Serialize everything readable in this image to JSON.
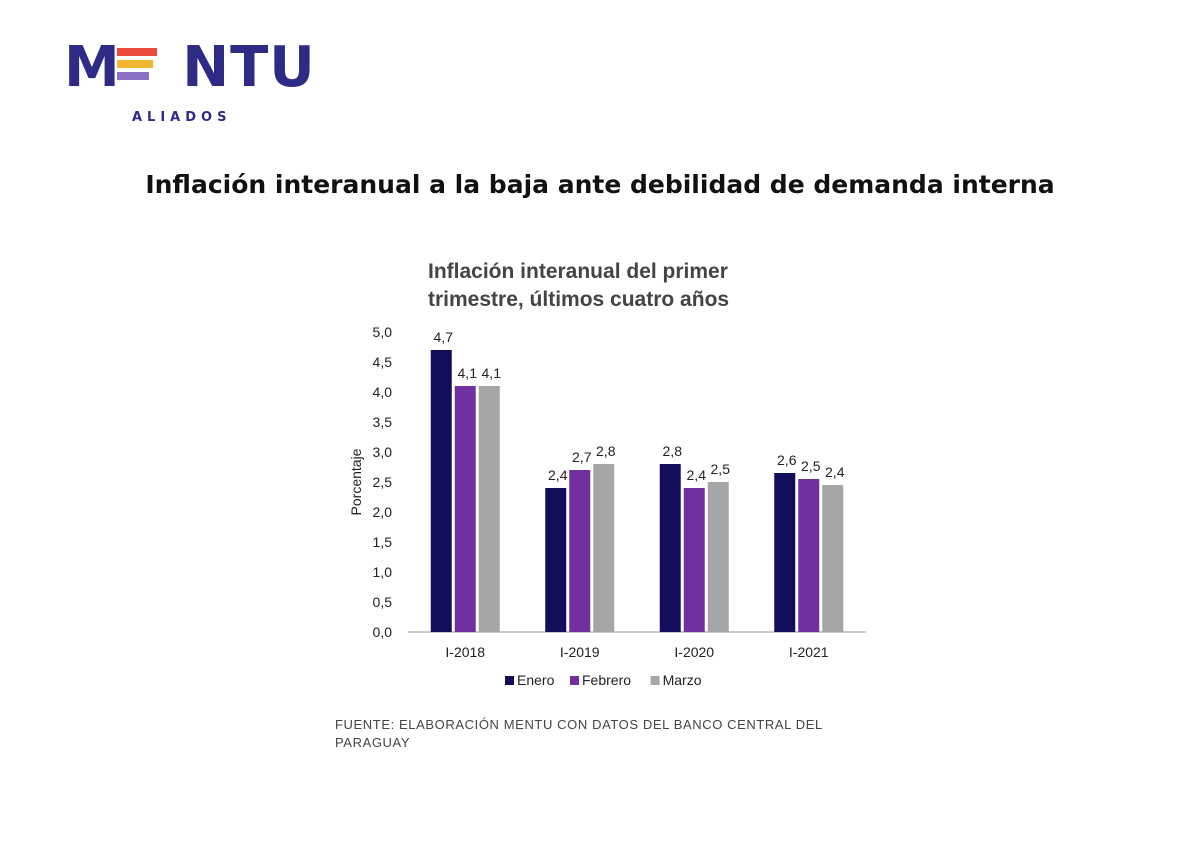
{
  "brand": {
    "name": "MENTU",
    "tagline": "ALIADOS",
    "color": "#2e2a86",
    "bar_colors": [
      "#e94b3c",
      "#f2b632",
      "#8b6fc4"
    ]
  },
  "headline": "Inflación interanual a la baja ante debilidad de demanda interna",
  "chart_data": {
    "type": "bar",
    "title": "Inflación interanual del primer trimestre, últimos cuatro años",
    "title_lines": [
      "Inflación interanual del primer",
      "trimestre, últimos cuatro años"
    ],
    "ylabel": "Porcentaje",
    "xlabel": "",
    "ylim": [
      0,
      5
    ],
    "yticks": [
      "0,0",
      "0,5",
      "1,0",
      "1,5",
      "2,0",
      "2,5",
      "3,0",
      "3,5",
      "4,0",
      "4,5",
      "5,0"
    ],
    "categories": [
      "I-2018",
      "I-2019",
      "I-2020",
      "I-2021"
    ],
    "series": [
      {
        "name": "Enero",
        "color": "#120e5c",
        "values": [
          4.7,
          2.4,
          2.8,
          2.65
        ],
        "labels": [
          "4,7",
          "2,4",
          "2,8",
          "2,6"
        ]
      },
      {
        "name": "Febrero",
        "color": "#7030a0",
        "values": [
          4.1,
          2.7,
          2.4,
          2.55
        ],
        "labels": [
          "4,1",
          "2,7",
          "2,4",
          "2,5"
        ]
      },
      {
        "name": "Marzo",
        "color": "#a6a6a6",
        "values": [
          4.1,
          2.8,
          2.5,
          2.45
        ],
        "labels": [
          "4,1",
          "2,8",
          "2,5",
          "2,4"
        ]
      }
    ],
    "grid": false,
    "legend": "bottom"
  },
  "source": "FUENTE: ELABORACIÓN MENTU CON DATOS DEL BANCO CENTRAL DEL PARAGUAY"
}
